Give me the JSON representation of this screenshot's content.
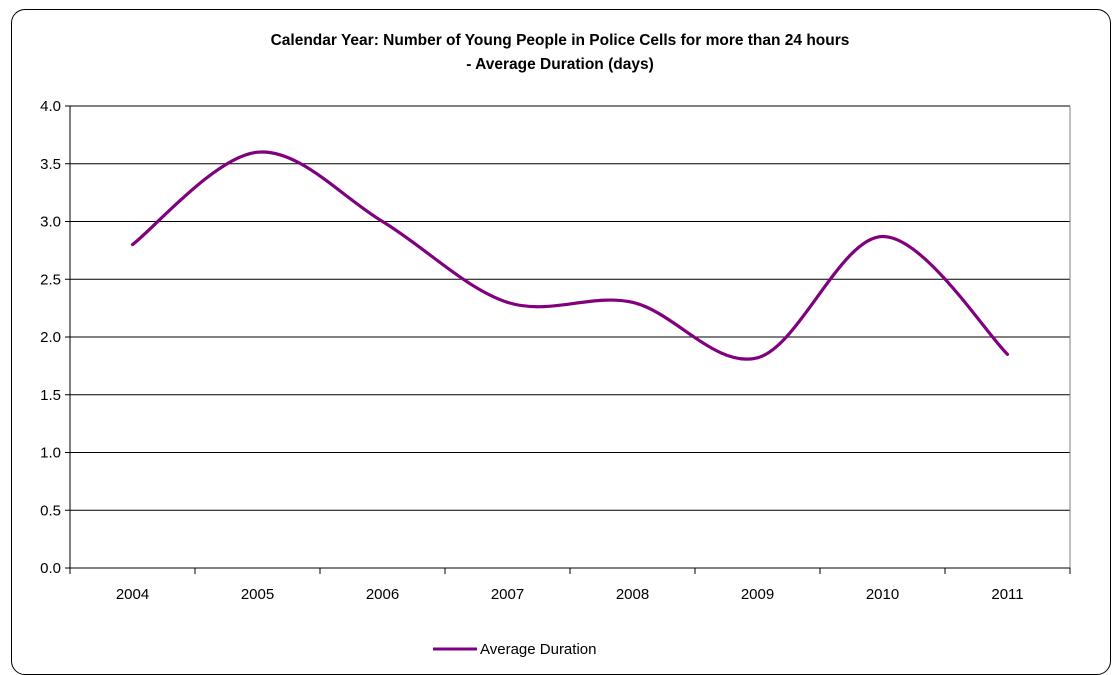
{
  "chart_data": {
    "type": "line",
    "title": "Calendar Year: Number of Young People in Police Cells for more than 24 hours",
    "subtitle": "- Average Duration (days)",
    "xlabel": "",
    "ylabel": "",
    "categories": [
      "2004",
      "2005",
      "2006",
      "2007",
      "2008",
      "2009",
      "2010",
      "2011"
    ],
    "series": [
      {
        "name": "Average Duration",
        "color": "#800080",
        "values": [
          2.8,
          3.6,
          3.0,
          2.3,
          2.3,
          1.82,
          2.87,
          1.85
        ]
      }
    ],
    "ylim": [
      0,
      4.0
    ],
    "yticks": [
      "0.0",
      "0.5",
      "1.0",
      "1.5",
      "2.0",
      "2.5",
      "3.0",
      "3.5",
      "4.0"
    ],
    "grid": true,
    "legend_position": "bottom"
  }
}
